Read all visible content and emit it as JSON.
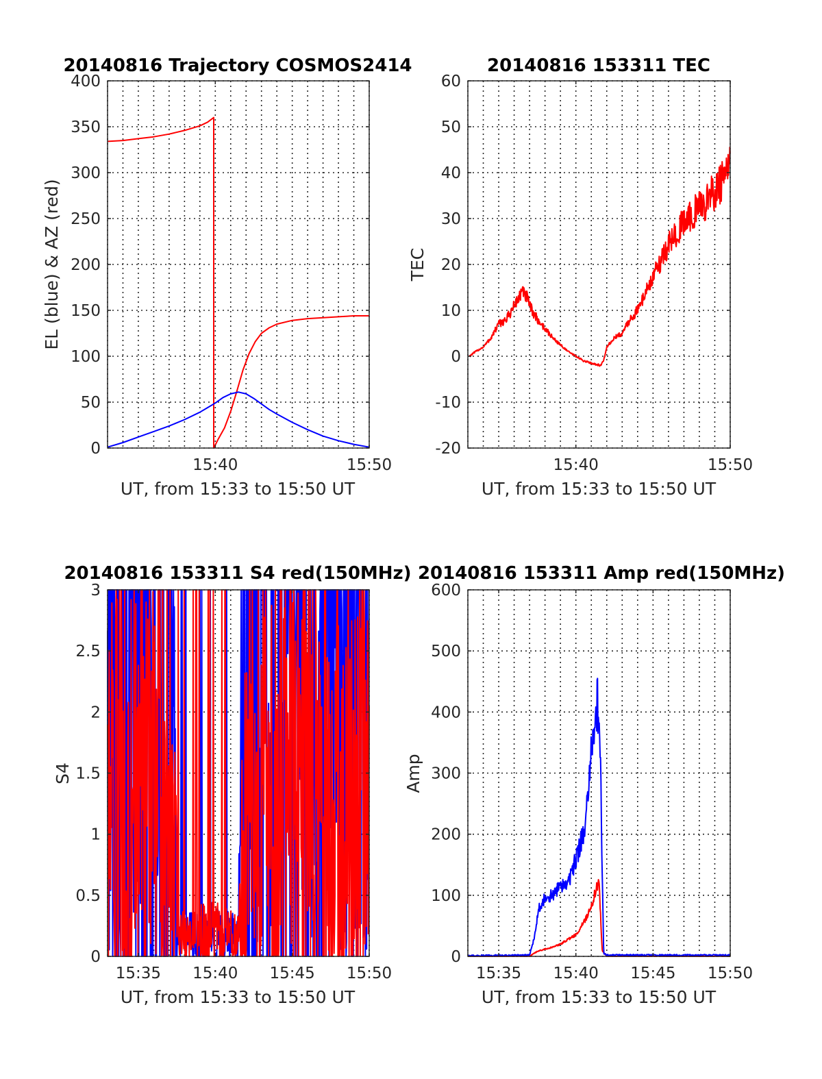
{
  "colors": {
    "red": "#ff0000",
    "blue": "#0000ff",
    "axis": "#262626"
  },
  "chart_data": [
    {
      "id": "trajectory",
      "type": "line",
      "title": "20140816 Trajectory COSMOS2414",
      "xlabel": "UT, from 15:33 to 15:50 UT",
      "ylabel": "EL (blue) & AZ (red)",
      "xlim": [
        33,
        50
      ],
      "ylim": [
        0,
        400
      ],
      "xticks": [
        {
          "v": 40,
          "label": "15:40"
        },
        {
          "v": 50,
          "label": "15:50"
        }
      ],
      "yticks": [
        {
          "v": 0,
          "label": "0"
        },
        {
          "v": 50,
          "label": "50"
        },
        {
          "v": 100,
          "label": "100"
        },
        {
          "v": 150,
          "label": "150"
        },
        {
          "v": 200,
          "label": "200"
        },
        {
          "v": 250,
          "label": "250"
        },
        {
          "v": 300,
          "label": "300"
        },
        {
          "v": 350,
          "label": "350"
        },
        {
          "v": 400,
          "label": "400"
        }
      ],
      "grid": true,
      "series": [
        {
          "color": "red",
          "noise": 0,
          "x": [
            33.0,
            34.0,
            35.0,
            36.0,
            37.0,
            38.0,
            39.0,
            39.5,
            39.9,
            39.9,
            40.2,
            40.6,
            41.0,
            41.4,
            41.8,
            42.2,
            42.6,
            43.0,
            43.5,
            44.0,
            45.0,
            46.0,
            47.0,
            48.0,
            49.0,
            50.0
          ],
          "y": [
            334,
            335,
            337,
            339,
            342,
            346,
            351,
            355,
            360,
            0,
            10,
            22,
            40,
            62,
            85,
            103,
            116,
            125,
            131,
            135,
            139,
            141,
            142,
            143,
            144,
            144
          ]
        },
        {
          "color": "blue",
          "noise": 0,
          "x": [
            33.0,
            34.0,
            35.0,
            36.0,
            37.0,
            38.0,
            39.0,
            39.5,
            40.0,
            40.5,
            41.0,
            41.5,
            42.0,
            42.5,
            43.0,
            43.5,
            44.0,
            45.0,
            46.0,
            47.0,
            48.0,
            49.0,
            50.0
          ],
          "y": [
            1,
            6,
            12,
            18,
            24,
            31,
            39,
            44,
            49,
            55,
            59,
            61,
            59,
            54,
            48,
            42,
            37,
            28,
            20,
            13,
            8,
            4,
            1
          ]
        }
      ]
    },
    {
      "id": "tec",
      "type": "line",
      "title": "20140816 153311 TEC",
      "xlabel": "UT, from 15:33 to 15:50 UT",
      "ylabel": "TEC",
      "xlim": [
        33,
        50
      ],
      "ylim": [
        -20,
        60
      ],
      "xticks": [
        {
          "v": 40,
          "label": "15:40"
        },
        {
          "v": 50,
          "label": "15:50"
        }
      ],
      "yticks": [
        {
          "v": -20,
          "label": "-20"
        },
        {
          "v": -10,
          "label": "-10"
        },
        {
          "v": 0,
          "label": "0"
        },
        {
          "v": 10,
          "label": "10"
        },
        {
          "v": 20,
          "label": "20"
        },
        {
          "v": 30,
          "label": "30"
        },
        {
          "v": 40,
          "label": "40"
        },
        {
          "v": 50,
          "label": "50"
        },
        {
          "v": 60,
          "label": "60"
        }
      ],
      "grid": true,
      "series": [
        {
          "color": "red",
          "noise": 0.4,
          "x": [
            33.1,
            33.5,
            34.0,
            34.5,
            35.0,
            35.5,
            36.0,
            36.5,
            36.8,
            37.0,
            37.5,
            38.0,
            38.5,
            39.0,
            39.5,
            40.0,
            40.5,
            41.0,
            41.6,
            41.8,
            42.0,
            42.5,
            43.0,
            43.5,
            44.0,
            44.5,
            45.0,
            45.5,
            46.0,
            46.5,
            47.0,
            47.5,
            48.0,
            48.5,
            49.0,
            49.5,
            50.0
          ],
          "y": [
            0,
            1,
            2,
            4,
            7,
            8,
            11,
            14,
            13,
            11,
            8,
            6,
            4,
            2.5,
            1,
            0,
            -1,
            -1.5,
            -2,
            -1,
            2,
            4,
            5,
            8,
            10,
            14,
            17,
            21,
            24,
            27,
            29,
            31,
            32,
            34,
            36,
            38,
            41
          ]
        }
      ]
    },
    {
      "id": "s4",
      "type": "line",
      "title": "20140816 153311 S4 red(150MHz)",
      "xlabel": "UT, from 15:33 to 15:50 UT",
      "ylabel": "S4",
      "xlim": [
        33,
        50
      ],
      "ylim": [
        0,
        3
      ],
      "xticks": [
        {
          "v": 35,
          "label": "15:35"
        },
        {
          "v": 40,
          "label": "15:40"
        },
        {
          "v": 45,
          "label": "15:45"
        },
        {
          "v": 50,
          "label": "15:50"
        }
      ],
      "yticks": [
        {
          "v": 0,
          "label": "0"
        },
        {
          "v": 0.5,
          "label": "0.5"
        },
        {
          "v": 1,
          "label": "1"
        },
        {
          "v": 1.5,
          "label": "1.5"
        },
        {
          "v": 2,
          "label": "2"
        },
        {
          "v": 2.5,
          "label": "2.5"
        },
        {
          "v": 3,
          "label": "3"
        }
      ],
      "grid": true,
      "series": [
        {
          "color": "blue",
          "noise": 1.2,
          "x": [
            33.0,
            34.0,
            35.0,
            36.0,
            37.0,
            37.4,
            37.6,
            38.5,
            39.5,
            40.5,
            41.5,
            41.7,
            42.0,
            43.0,
            44.0,
            45.0,
            46.0,
            47.0,
            48.0,
            49.0,
            50.0
          ],
          "y": [
            2.6,
            2.6,
            2.7,
            2.6,
            2.3,
            1.6,
            0.14,
            0.17,
            0.17,
            0.17,
            0.16,
            1.5,
            2.6,
            2.7,
            2.8,
            2.7,
            2.7,
            2.6,
            2.7,
            2.7,
            2.7
          ]
        },
        {
          "color": "red",
          "noise": 1.1,
          "x": [
            33.0,
            34.0,
            35.0,
            36.0,
            36.5,
            37.0,
            37.4,
            37.6,
            38.5,
            39.5,
            40.5,
            41.5,
            41.7,
            42.0,
            43.0,
            44.0,
            45.0,
            46.0,
            47.0,
            48.0,
            49.0,
            50.0
          ],
          "y": [
            1.3,
            1.4,
            1.3,
            1.4,
            1.2,
            1.0,
            0.9,
            0.15,
            0.2,
            0.2,
            0.2,
            0.15,
            0.9,
            1.1,
            1.3,
            1.3,
            1.4,
            1.3,
            1.4,
            1.3,
            1.3,
            1.3
          ]
        }
      ]
    },
    {
      "id": "amp",
      "type": "line",
      "title": "20140816 153311 Amp red(150MHz)",
      "xlabel": "UT, from 15:33 to 15:50 UT",
      "ylabel": "Amp",
      "xlim": [
        33,
        50
      ],
      "ylim": [
        0,
        600
      ],
      "xticks": [
        {
          "v": 35,
          "label": "15:35"
        },
        {
          "v": 40,
          "label": "15:40"
        },
        {
          "v": 45,
          "label": "15:45"
        },
        {
          "v": 50,
          "label": "15:50"
        }
      ],
      "yticks": [
        {
          "v": 0,
          "label": "0"
        },
        {
          "v": 100,
          "label": "100"
        },
        {
          "v": 200,
          "label": "200"
        },
        {
          "v": 300,
          "label": "300"
        },
        {
          "v": 400,
          "label": "400"
        },
        {
          "v": 500,
          "label": "500"
        },
        {
          "v": 600,
          "label": "600"
        }
      ],
      "grid": true,
      "series": [
        {
          "color": "red",
          "noise": 0.25,
          "x": [
            33.0,
            37.0,
            37.5,
            38.0,
            38.5,
            39.0,
            39.5,
            40.0,
            40.5,
            41.0,
            41.3,
            41.5,
            41.7,
            42.0,
            50.0
          ],
          "y": [
            0,
            0,
            8,
            12,
            15,
            20,
            28,
            35,
            55,
            80,
            110,
            120,
            10,
            0,
            0
          ]
        },
        {
          "color": "blue",
          "noise": 0.35,
          "x": [
            33.0,
            37.0,
            37.3,
            37.6,
            38.0,
            38.5,
            39.0,
            39.5,
            40.0,
            40.5,
            40.8,
            41.0,
            41.2,
            41.4,
            41.6,
            41.8,
            42.0,
            50.0
          ],
          "y": [
            1,
            2,
            30,
            80,
            95,
            100,
            115,
            120,
            160,
            200,
            260,
            330,
            380,
            420,
            300,
            5,
            2,
            2
          ]
        }
      ]
    }
  ]
}
